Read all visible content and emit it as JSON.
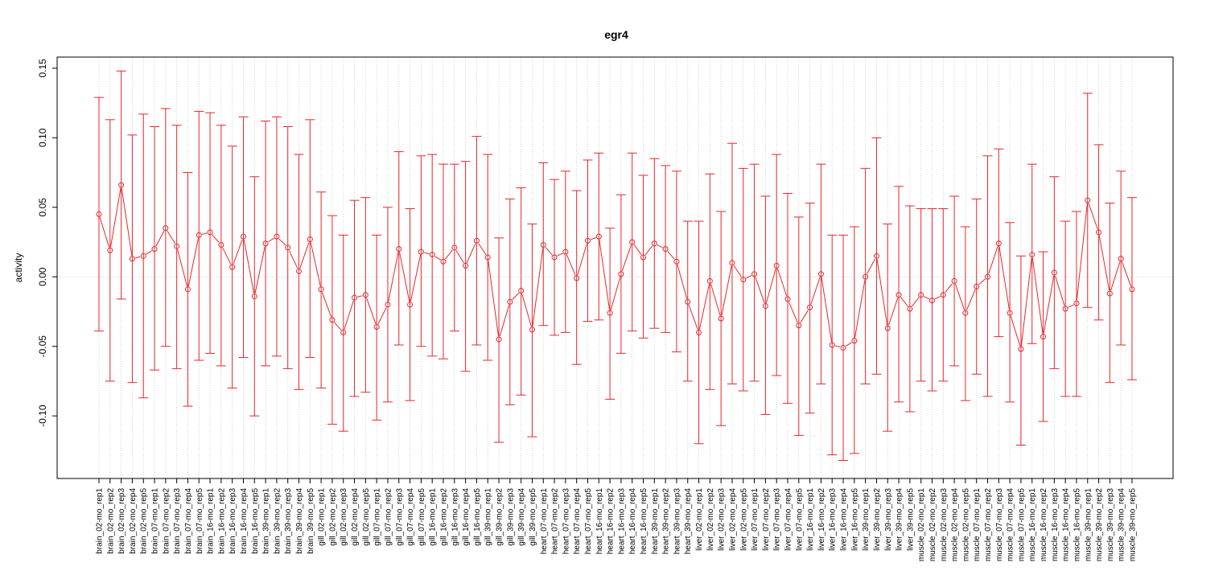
{
  "chart_data": {
    "type": "line",
    "title": "egr4",
    "xlabel": "",
    "ylabel": "activity",
    "ylim": [
      -0.145,
      0.158
    ],
    "yticks": [
      -0.1,
      -0.05,
      0.0,
      0.05,
      0.1,
      0.15
    ],
    "ytick_labels": [
      "-0.10",
      "-0.05",
      "0.00",
      "0.05",
      "0.10",
      "0.15"
    ],
    "grid": true,
    "error_bars": true,
    "color": "#e8262a",
    "grid_color": "#c8c8c8",
    "categories": [
      "brain_02-mo_rep1",
      "brain_02-mo_rep2",
      "brain_02-mo_rep3",
      "brain_02-mo_rep4",
      "brain_02-mo_rep5",
      "brain_07-mo_rep1",
      "brain_07-mo_rep2",
      "brain_07-mo_rep3",
      "brain_07-mo_rep4",
      "brain_07-mo_rep5",
      "brain_16-mo_rep1",
      "brain_16-mo_rep2",
      "brain_16-mo_rep3",
      "brain_16-mo_rep4",
      "brain_16-mo_rep5",
      "brain_39-mo_rep1",
      "brain_39-mo_rep2",
      "brain_39-mo_rep3",
      "brain_39-mo_rep4",
      "brain_39-mo_rep5",
      "gill_02-mo_rep1",
      "gill_02-mo_rep2",
      "gill_02-mo_rep3",
      "gill_02-mo_rep4",
      "gill_02-mo_rep5",
      "gill_07-mo_rep1",
      "gill_07-mo_rep2",
      "gill_07-mo_rep3",
      "gill_07-mo_rep4",
      "gill_07-mo_rep5",
      "gill_16-mo_rep1",
      "gill_16-mo_rep2",
      "gill_16-mo_rep3",
      "gill_16-mo_rep4",
      "gill_16-mo_rep5",
      "gill_39-mo_rep1",
      "gill_39-mo_rep2",
      "gill_39-mo_rep3",
      "gill_39-mo_rep4",
      "gill_39-mo_rep5",
      "heart_07-mo_rep1",
      "heart_07-mo_rep2",
      "heart_07-mo_rep3",
      "heart_07-mo_rep4",
      "heart_07-mo_rep5",
      "heart_16-mo_rep1",
      "heart_16-mo_rep2",
      "heart_16-mo_rep3",
      "heart_16-mo_rep4",
      "heart_16-mo_rep5",
      "heart_39-mo_rep1",
      "heart_39-mo_rep2",
      "heart_39-mo_rep3",
      "heart_39-mo_rep4",
      "liver_02-mo_rep1",
      "liver_02-mo_rep2",
      "liver_02-mo_rep3",
      "liver_02-mo_rep4",
      "liver_02-mo_rep5",
      "liver_07-mo_rep1",
      "liver_07-mo_rep2",
      "liver_07-mo_rep3",
      "liver_07-mo_rep4",
      "liver_07-mo_rep5",
      "liver_16-mo_rep1",
      "liver_16-mo_rep2",
      "liver_16-mo_rep3",
      "liver_16-mo_rep4",
      "liver_16-mo_rep5",
      "liver_39-mo_rep1",
      "liver_39-mo_rep2",
      "liver_39-mo_rep3",
      "liver_39-mo_rep4",
      "liver_39-mo_rep5",
      "muscle_02-mo_rep1",
      "muscle_02-mo_rep2",
      "muscle_02-mo_rep3",
      "muscle_02-mo_rep4",
      "muscle_02-mo_rep5",
      "muscle_07-mo_rep1",
      "muscle_07-mo_rep2",
      "muscle_07-mo_rep3",
      "muscle_07-mo_rep4",
      "muscle_07-mo_rep5",
      "muscle_16-mo_rep1",
      "muscle_16-mo_rep2",
      "muscle_16-mo_rep3",
      "muscle_16-mo_rep4",
      "muscle_16-mo_rep5",
      "muscle_39-mo_rep1",
      "muscle_39-mo_rep2",
      "muscle_39-mo_rep3",
      "muscle_39-mo_rep4",
      "muscle_39-mo_rep5"
    ],
    "values": [
      0.045,
      0.019,
      0.066,
      0.013,
      0.015,
      0.02,
      0.035,
      0.022,
      -0.009,
      0.03,
      0.032,
      0.023,
      0.007,
      0.029,
      -0.014,
      0.024,
      0.029,
      0.021,
      0.004,
      0.027,
      -0.009,
      -0.031,
      -0.04,
      -0.015,
      -0.013,
      -0.036,
      -0.02,
      0.02,
      -0.02,
      0.018,
      0.016,
      0.011,
      0.021,
      0.008,
      0.026,
      0.014,
      -0.045,
      -0.018,
      -0.01,
      -0.038,
      0.023,
      0.014,
      0.018,
      -0.001,
      0.026,
      0.029,
      -0.026,
      0.002,
      0.025,
      0.014,
      0.024,
      0.02,
      0.011,
      -0.018,
      -0.04,
      -0.003,
      -0.03,
      0.01,
      -0.002,
      0.002,
      -0.021,
      0.008,
      -0.016,
      -0.035,
      -0.022,
      0.002,
      -0.049,
      -0.051,
      -0.046,
      0.0,
      0.015,
      -0.037,
      -0.013,
      -0.023,
      -0.013,
      -0.017,
      -0.013,
      -0.003,
      -0.026,
      -0.007,
      0.0,
      0.024,
      -0.026,
      -0.052,
      0.016,
      -0.043,
      0.003,
      -0.023,
      -0.019,
      0.055,
      0.032,
      -0.012,
      0.013,
      -0.009
    ],
    "upper": [
      0.129,
      0.113,
      0.148,
      0.102,
      0.117,
      0.108,
      0.121,
      0.109,
      0.075,
      0.119,
      0.118,
      0.109,
      0.094,
      0.115,
      0.072,
      0.112,
      0.115,
      0.108,
      0.088,
      0.113,
      0.061,
      0.044,
      0.03,
      0.055,
      0.057,
      0.03,
      0.05,
      0.09,
      0.049,
      0.087,
      0.088,
      0.081,
      0.081,
      0.083,
      0.101,
      0.088,
      0.028,
      0.056,
      0.064,
      0.038,
      0.082,
      0.07,
      0.076,
      0.062,
      0.084,
      0.089,
      0.035,
      0.059,
      0.089,
      0.073,
      0.085,
      0.08,
      0.076,
      0.04,
      0.04,
      0.074,
      0.047,
      0.096,
      0.078,
      0.081,
      0.058,
      0.088,
      0.06,
      0.043,
      0.053,
      0.081,
      0.03,
      0.03,
      0.036,
      0.078,
      0.1,
      0.038,
      0.065,
      0.051,
      0.049,
      0.049,
      0.049,
      0.058,
      0.036,
      0.056,
      0.087,
      0.092,
      0.039,
      0.015,
      0.081,
      0.018,
      0.072,
      0.04,
      0.047,
      0.132,
      0.095,
      0.053,
      0.076,
      0.057
    ],
    "lower": [
      -0.039,
      -0.075,
      -0.016,
      -0.076,
      -0.087,
      -0.067,
      -0.05,
      -0.066,
      -0.093,
      -0.06,
      -0.055,
      -0.064,
      -0.08,
      -0.058,
      -0.1,
      -0.064,
      -0.057,
      -0.066,
      -0.081,
      -0.058,
      -0.08,
      -0.106,
      -0.111,
      -0.086,
      -0.083,
      -0.103,
      -0.09,
      -0.049,
      -0.089,
      -0.05,
      -0.057,
      -0.059,
      -0.039,
      -0.068,
      -0.049,
      -0.06,
      -0.119,
      -0.092,
      -0.085,
      -0.115,
      -0.035,
      -0.042,
      -0.04,
      -0.063,
      -0.032,
      -0.031,
      -0.088,
      -0.055,
      -0.039,
      -0.044,
      -0.037,
      -0.04,
      -0.054,
      -0.075,
      -0.12,
      -0.081,
      -0.107,
      -0.077,
      -0.082,
      -0.075,
      -0.099,
      -0.071,
      -0.091,
      -0.114,
      -0.098,
      -0.077,
      -0.128,
      -0.132,
      -0.127,
      -0.077,
      -0.07,
      -0.111,
      -0.09,
      -0.097,
      -0.075,
      -0.082,
      -0.075,
      -0.064,
      -0.089,
      -0.07,
      -0.086,
      -0.043,
      -0.09,
      -0.121,
      -0.048,
      -0.104,
      -0.066,
      -0.086,
      -0.086,
      -0.022,
      -0.031,
      -0.076,
      -0.049,
      -0.074
    ]
  }
}
